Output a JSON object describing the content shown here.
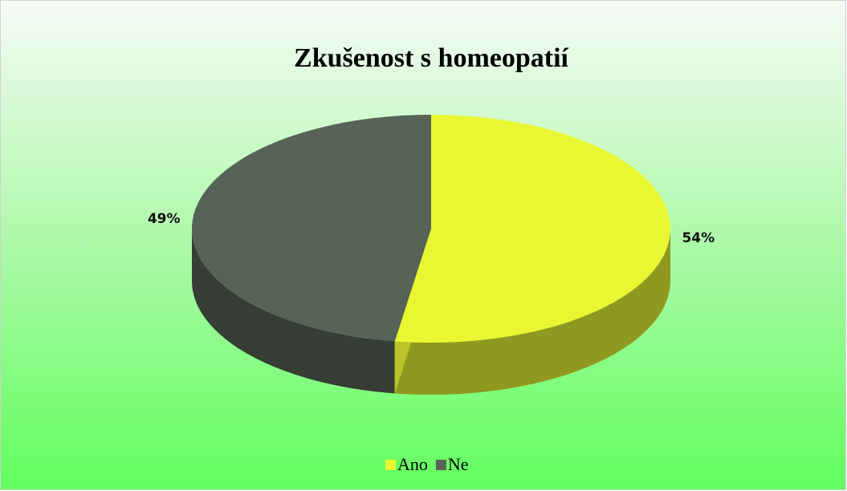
{
  "chart_data": {
    "type": "pie",
    "title": "Zkušenost s homeopatií",
    "categories": [
      "Ano",
      "Ne"
    ],
    "values": [
      54,
      49
    ],
    "value_labels": [
      "54%",
      "49%"
    ],
    "colors": [
      "#e8f732",
      "#566356"
    ],
    "legend": "bottom"
  }
}
